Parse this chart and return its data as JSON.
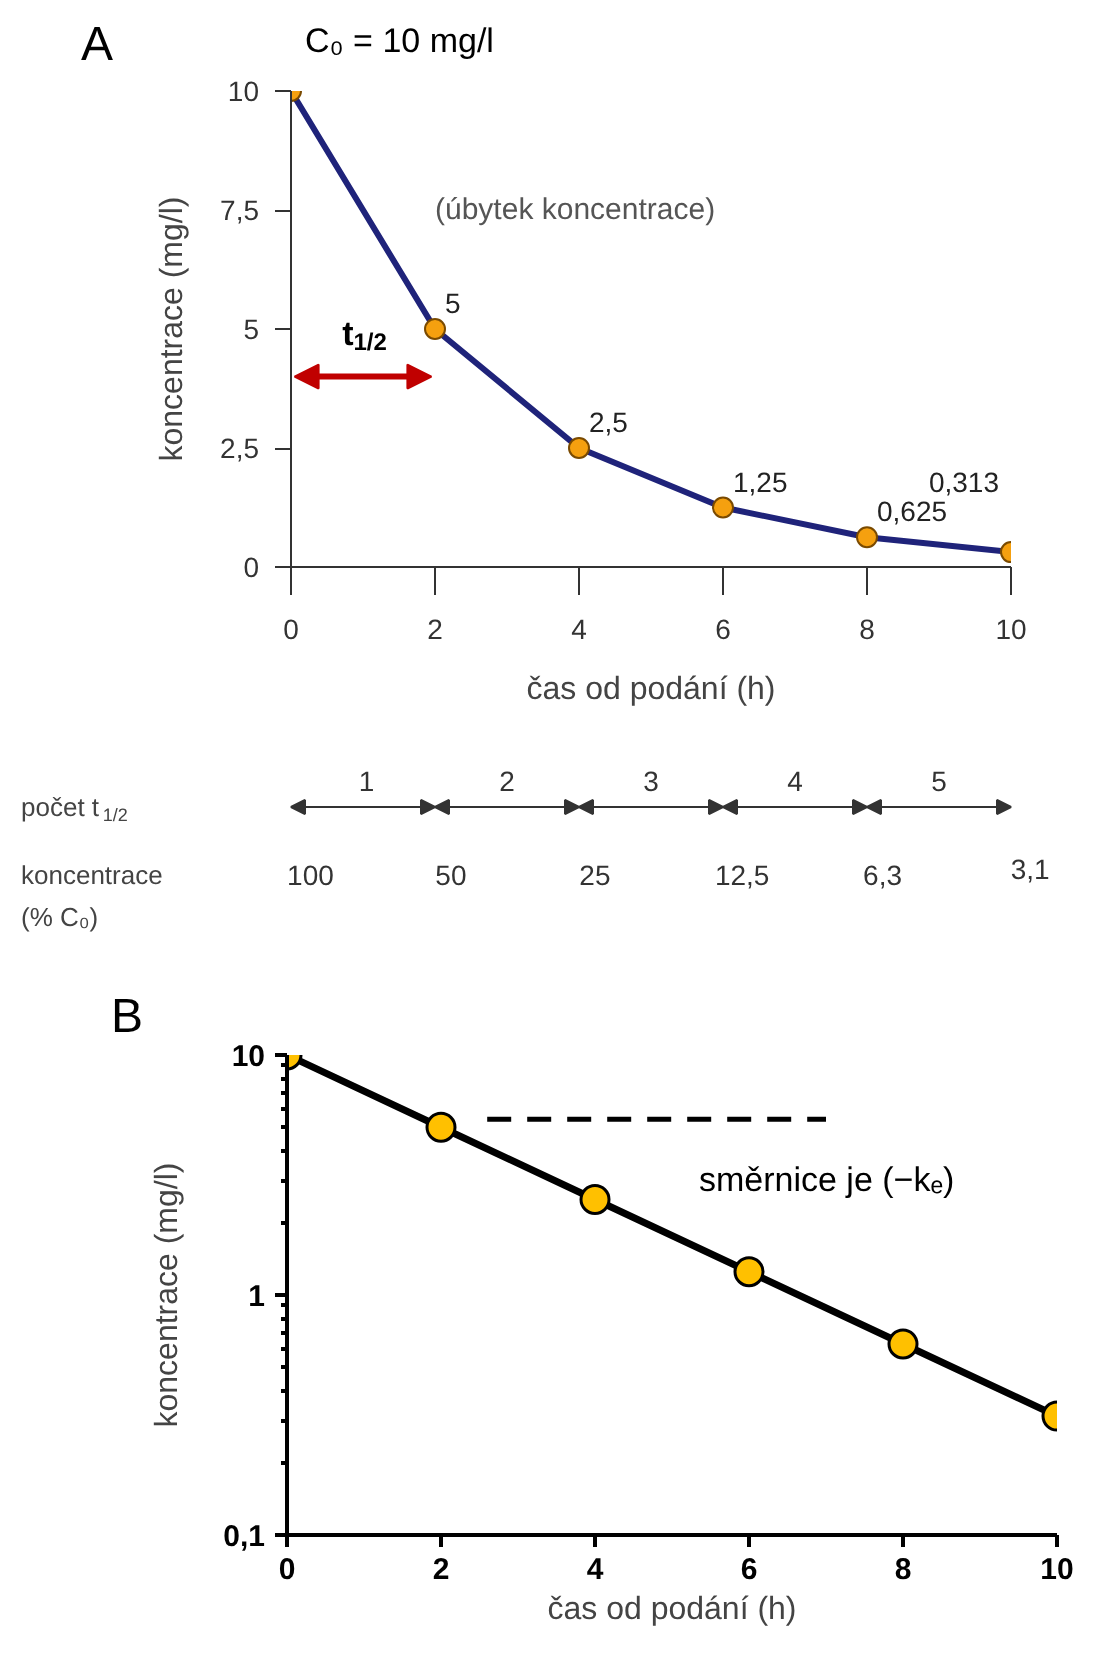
{
  "chart_data": [
    {
      "type": "line",
      "title": "A",
      "xlabel": "čas od podání (h)",
      "ylabel": "koncentrace (mg/l)",
      "x": [
        0,
        2,
        4,
        6,
        8,
        10
      ],
      "series": [
        {
          "color": "#1f237a",
          "colors": [
            "#f5a00f",
            "#f5a00f",
            "#f5a00f",
            "#f5a00f",
            "#f5a00f",
            "#f5a00f"
          ],
          "values": [
            10,
            5,
            2.5,
            1.25,
            0.625,
            0.313
          ],
          "value_labels": [
            null,
            "5",
            "2,5",
            "1,25",
            "0,625",
            "0,313"
          ]
        }
      ],
      "xlim": [
        0,
        10
      ],
      "ylim": [
        0,
        10
      ],
      "xticks": [
        0,
        2,
        4,
        6,
        8,
        10
      ],
      "yticks": [
        0,
        {
          "value": 2.5,
          "label": "2,5"
        },
        5,
        {
          "value": 7.5,
          "label": "7,5"
        },
        10
      ],
      "grid": false,
      "marker": "circle",
      "line_style": "solid",
      "annotations": [
        "C₀ = 10 mg/l",
        "(úbytek koncentrace)",
        "t$_{1/2}$",
        "počet t$_{1/2}$",
        "1",
        "2",
        "3",
        "4",
        "5",
        "koncentrace",
        "(% C₀)",
        "100",
        "50",
        "25",
        "12,5",
        "6,3",
        "3,1"
      ]
    },
    {
      "type": "line",
      "title": "B",
      "xlabel": "čas od podání (h)",
      "ylabel": "koncentrace (mg/l)",
      "x": [
        0,
        2,
        4,
        6,
        8,
        10
      ],
      "series": [
        {
          "color": "#000000",
          "colors": [
            "#ffc000",
            "#ffc000",
            "#ffc000",
            "#ffc000",
            "#ffc000",
            "#ffc000"
          ],
          "values": [
            10,
            5,
            2.5,
            1.25,
            0.625,
            0.313
          ]
        }
      ],
      "log": true,
      "xlim": [
        0,
        10
      ],
      "ylim": [
        0.1,
        10
      ],
      "xticks": [
        0,
        2,
        4,
        6,
        8,
        10
      ],
      "yticks": [
        {
          "value": 0.1,
          "label": "0,1"
        },
        1,
        10
      ],
      "grid": false,
      "marker": "circle",
      "line_style": "solid",
      "annotations": [
        "směrnice je (−kₑ)"
      ]
    }
  ]
}
